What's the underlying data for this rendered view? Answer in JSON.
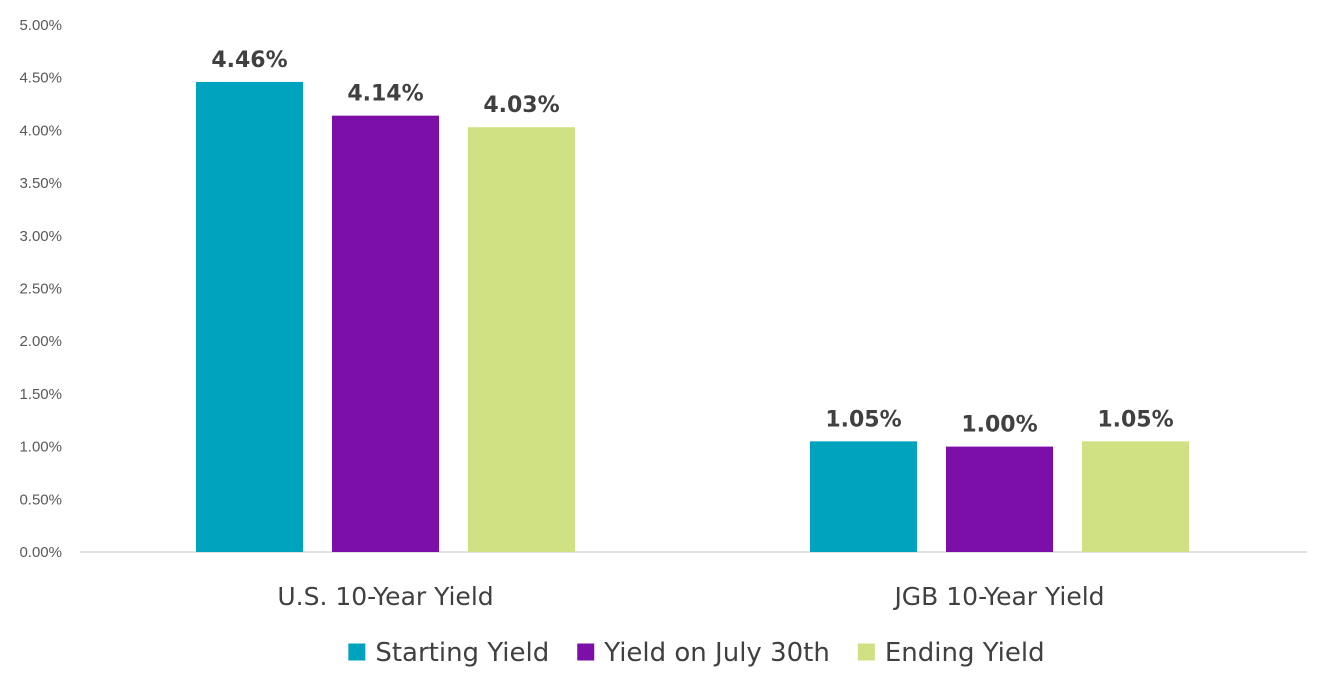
{
  "chart_data": {
    "type": "bar",
    "categories": [
      "U.S. 10-Year Yield",
      "JGB 10-Year Yield"
    ],
    "series": [
      {
        "name": "Starting Yield",
        "values": [
          4.46,
          1.05
        ],
        "labels": [
          "4.46%",
          "1.05%"
        ],
        "color": "#00A3BE"
      },
      {
        "name": "Yield on July 30th",
        "values": [
          4.14,
          1.0
        ],
        "labels": [
          "4.14%",
          "1.00%"
        ],
        "color": "#7B0FA8"
      },
      {
        "name": "Ending Yield",
        "values": [
          4.03,
          1.05
        ],
        "labels": [
          "4.03%",
          "1.05%"
        ],
        "color": "#D0E183"
      }
    ],
    "ylim": [
      0,
      5
    ],
    "yticks": [
      0,
      0.5,
      1,
      1.5,
      2,
      2.5,
      3,
      3.5,
      4,
      4.5,
      5
    ],
    "ytick_labels": [
      "0.00%",
      "0.50%",
      "1.00%",
      "1.50%",
      "2.00%",
      "2.50%",
      "3.00%",
      "3.50%",
      "4.00%",
      "4.50%",
      "5.00%"
    ],
    "grid": false,
    "legend": "bottom",
    "title": "",
    "xlabel": "",
    "ylabel": ""
  }
}
